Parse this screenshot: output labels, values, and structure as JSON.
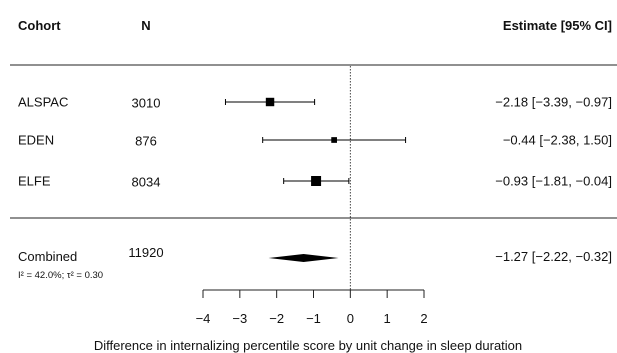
{
  "chart_data": {
    "type": "forest",
    "headers": {
      "cohort": "Cohort",
      "n": "N",
      "estimate": "Estimate [95% CI]"
    },
    "studies": [
      {
        "cohort": "ALSPAC",
        "n": "3010",
        "estimate": -2.18,
        "lower": -3.39,
        "upper": -0.97,
        "ci_text": "−2.18 [−3.39, −0.97]",
        "weight": 0.6
      },
      {
        "cohort": "EDEN",
        "n": "876",
        "estimate": -0.44,
        "lower": -2.38,
        "upper": 1.5,
        "ci_text": "−0.44 [−2.38,  1.50]",
        "weight": 0.15
      },
      {
        "cohort": "ELFE",
        "n": "8034",
        "estimate": -0.93,
        "lower": -1.81,
        "upper": -0.04,
        "ci_text": "−0.93 [−1.81, −0.04]",
        "weight": 1.0
      }
    ],
    "combined": {
      "cohort": "Combined",
      "n": "11920",
      "estimate": -1.27,
      "lower": -2.22,
      "upper": -0.32,
      "ci_text": "−1.27 [−2.22, −0.32]",
      "heterogeneity": "I² = 42.0%; τ² = 0.30"
    },
    "xlim": [
      -4,
      2
    ],
    "xticks": [
      {
        "value": -4,
        "label": "−4"
      },
      {
        "value": -3,
        "label": "−3"
      },
      {
        "value": -2,
        "label": "−2"
      },
      {
        "value": -1,
        "label": "−1"
      },
      {
        "value": 0,
        "label": "0"
      },
      {
        "value": 1,
        "label": "1"
      },
      {
        "value": 2,
        "label": "2"
      }
    ],
    "reference_line": 0,
    "xlabel": "Difference in internalizing percentile score by unit change in sleep duration"
  }
}
